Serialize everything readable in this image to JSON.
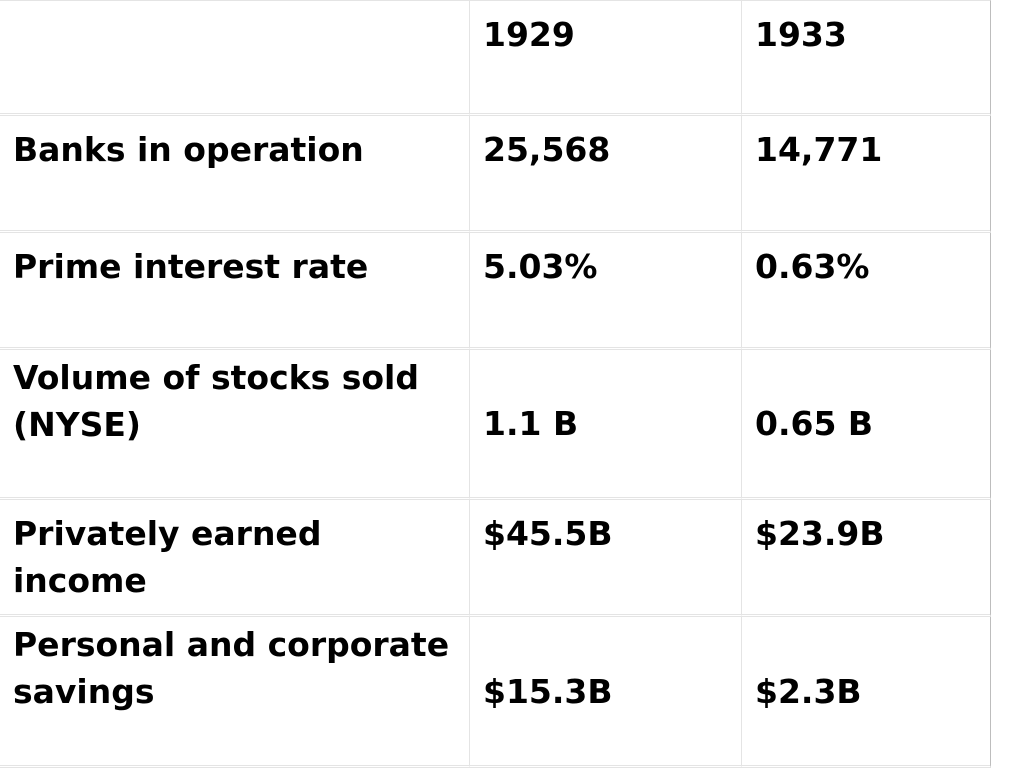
{
  "table": {
    "header": [
      "",
      "1929",
      "1933"
    ],
    "rows": [
      [
        "Banks in operation",
        "25,568",
        "14,771"
      ],
      [
        "Prime interest rate",
        "5.03%",
        "0.63%"
      ],
      [
        "Volume of stocks sold (NYSE)",
        "1.1 B",
        "0.65 B"
      ],
      [
        "Privately earned income",
        "$45.5B",
        "$23.9B"
      ],
      [
        "Personal and corporate savings",
        "$15.3B",
        "$2.3B"
      ]
    ]
  }
}
